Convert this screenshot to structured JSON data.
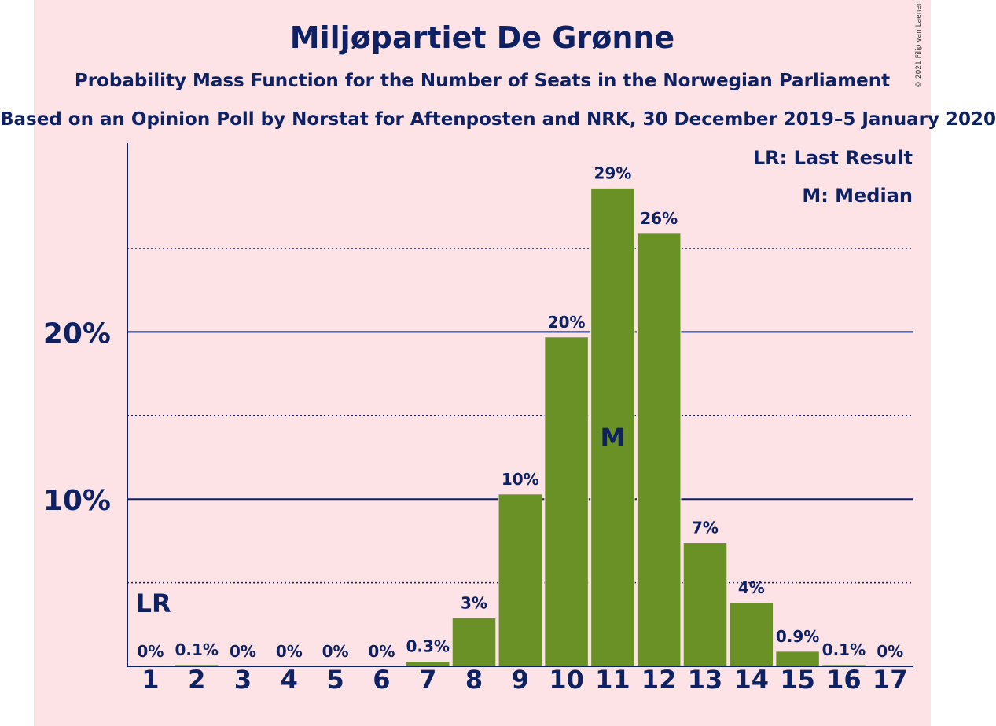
{
  "title": "Miljøpartiet De Grønne",
  "subtitle": "Probability Mass Function for the Number of Seats in the Norwegian Parliament",
  "source": "Based on an Opinion Poll by Norstat for Aftenposten and NRK, 30 December 2019–5 January 2020",
  "copyright": "© 2021 Filip van Laenen",
  "legend": {
    "last_result": "LR: Last Result",
    "median": "M: Median"
  },
  "colors": {
    "bar": "#6a9126",
    "text": "#0e2163",
    "background": "#fde2e6"
  },
  "chart_data": {
    "type": "bar",
    "categories": [
      "1",
      "2",
      "3",
      "4",
      "5",
      "6",
      "7",
      "8",
      "9",
      "10",
      "11",
      "12",
      "13",
      "14",
      "15",
      "16",
      "17"
    ],
    "values": [
      0,
      0.1,
      0,
      0,
      0,
      0,
      0.3,
      2.9,
      10.3,
      19.7,
      28.6,
      25.9,
      7.4,
      3.8,
      0.9,
      0.1,
      0
    ],
    "data_labels": [
      "0%",
      "0.1%",
      "0%",
      "0%",
      "0%",
      "0%",
      "0.3%",
      "3%",
      "10%",
      "20%",
      "29%",
      "26%",
      "7%",
      "4%",
      "0.9%",
      "0.1%",
      "0%"
    ],
    "y_ticks": [
      {
        "value": 10,
        "label": "10%"
      },
      {
        "value": 20,
        "label": "20%"
      }
    ],
    "minor_gridlines": [
      5,
      15,
      25
    ],
    "ylim": [
      0,
      31.3
    ],
    "last_result": {
      "category": "1",
      "label": "LR"
    },
    "median": {
      "category": "11",
      "label": "M"
    },
    "legend_position": "top-right"
  }
}
